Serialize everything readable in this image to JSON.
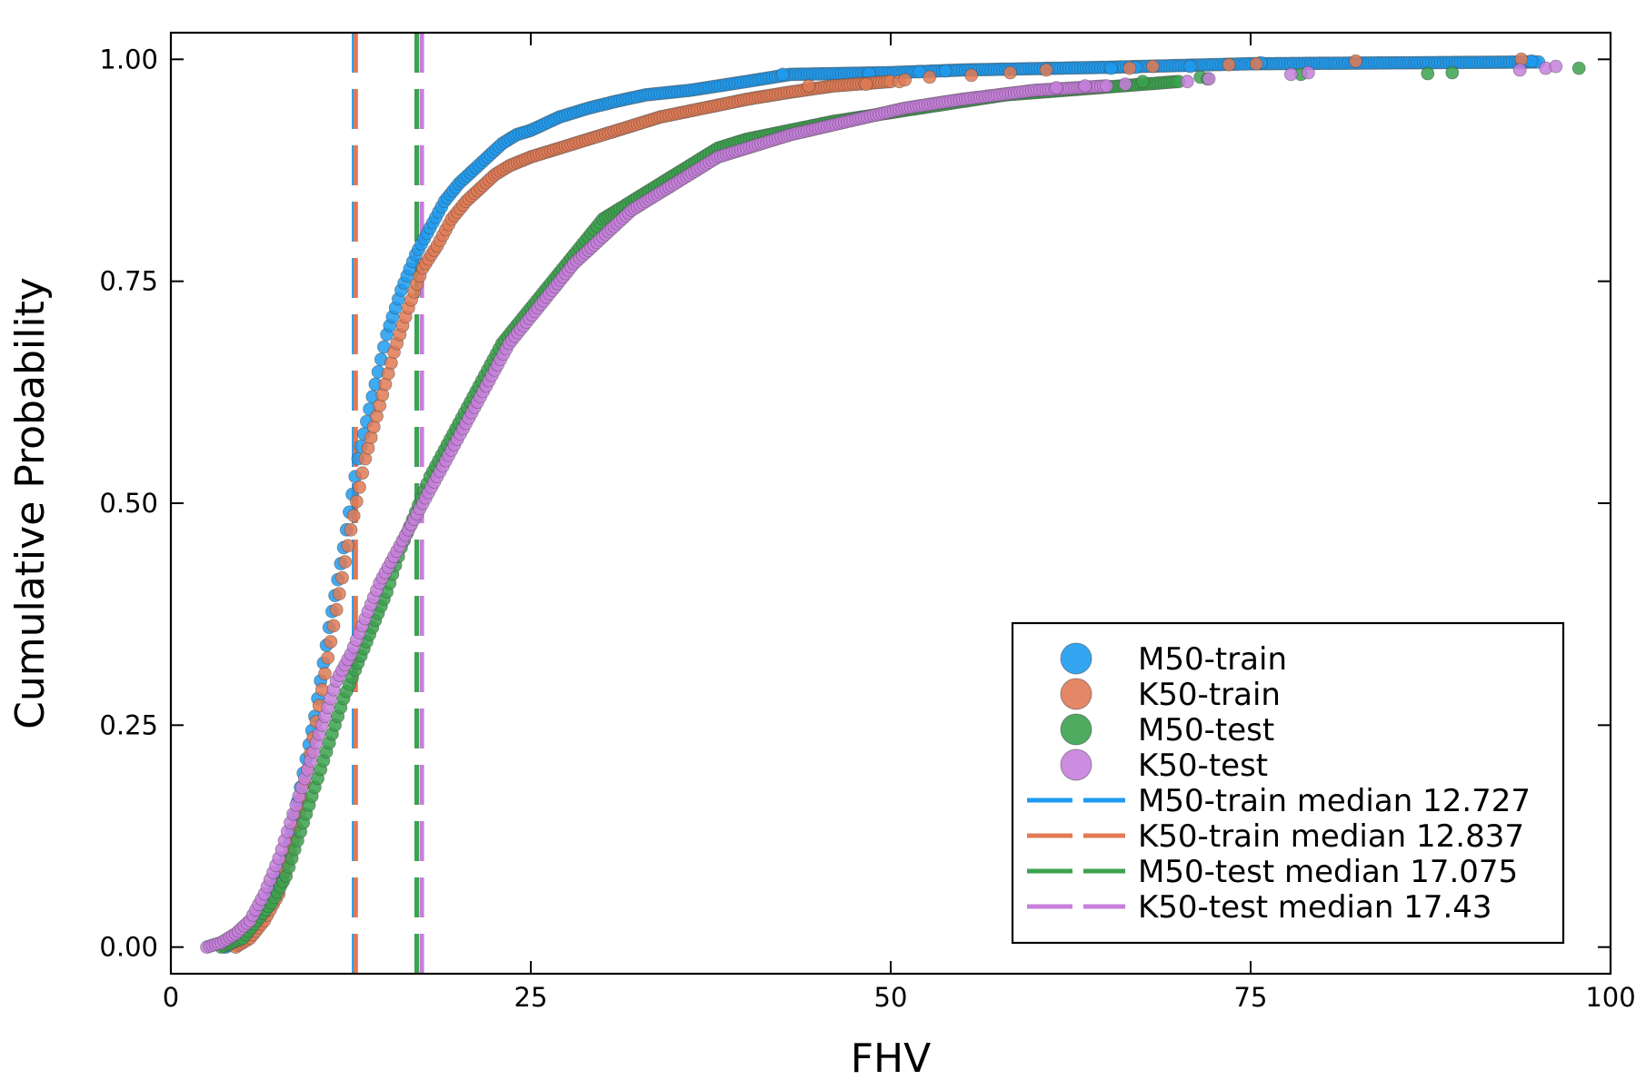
{
  "chart_data": {
    "type": "scatter",
    "title": "",
    "xlabel": "FHV",
    "ylabel": "Cumulative Probability",
    "xlim": [
      0,
      100
    ],
    "ylim": [
      -0.03,
      1.03
    ],
    "x_ticks": [
      0,
      25,
      50,
      75,
      100
    ],
    "x_tick_labels": [
      "0",
      "25",
      "50",
      "75",
      "100"
    ],
    "y_ticks": [
      0,
      0.25,
      0.5,
      0.75,
      1.0
    ],
    "y_tick_labels": [
      "0.00",
      "0.25",
      "0.50",
      "0.75",
      "1.00"
    ],
    "grid": false,
    "legend_position": "bottom-right",
    "series": [
      {
        "name": "M50-train",
        "color": "#1e9bf0",
        "curve": [
          [
            3.8,
            0
          ],
          [
            5,
            0.01
          ],
          [
            6,
            0.03
          ],
          [
            7,
            0.06
          ],
          [
            8,
            0.1
          ],
          [
            9,
            0.18
          ],
          [
            10,
            0.26
          ],
          [
            11,
            0.36
          ],
          [
            12,
            0.45
          ],
          [
            13,
            0.55
          ],
          [
            14,
            0.62
          ],
          [
            15,
            0.69
          ],
          [
            16,
            0.74
          ],
          [
            17,
            0.78
          ],
          [
            18,
            0.81
          ],
          [
            19,
            0.84
          ],
          [
            20,
            0.86
          ],
          [
            21,
            0.875
          ],
          [
            22,
            0.89
          ],
          [
            23,
            0.905
          ],
          [
            24,
            0.915
          ],
          [
            25,
            0.92
          ],
          [
            27,
            0.935
          ],
          [
            29,
            0.945
          ],
          [
            31,
            0.953
          ],
          [
            33,
            0.96
          ],
          [
            36,
            0.965
          ],
          [
            40,
            0.975
          ],
          [
            43,
            0.983
          ],
          [
            50,
            0.985
          ],
          [
            55,
            0.988
          ],
          [
            65,
            0.991
          ],
          [
            75,
            0.995
          ],
          [
            95,
            0.997
          ]
        ],
        "outliers": [
          [
            42.5,
            0.983
          ],
          [
            48.5,
            0.984
          ],
          [
            52,
            0.986
          ],
          [
            53.8,
            0.987
          ],
          [
            65.3,
            0.99
          ],
          [
            67,
            0.991
          ],
          [
            70.8,
            0.992
          ],
          [
            75.7,
            0.996
          ],
          [
            93.9,
            0.997
          ],
          [
            94.5,
            0.998
          ]
        ]
      },
      {
        "name": "K50-train",
        "color": "#e07a55",
        "curve": [
          [
            4.5,
            0
          ],
          [
            5.5,
            0.01
          ],
          [
            6.5,
            0.03
          ],
          [
            7.5,
            0.06
          ],
          [
            8.5,
            0.12
          ],
          [
            9.5,
            0.2
          ],
          [
            10.5,
            0.29
          ],
          [
            11.5,
            0.38
          ],
          [
            12.5,
            0.47
          ],
          [
            13.5,
            0.55
          ],
          [
            14.5,
            0.61
          ],
          [
            15.5,
            0.67
          ],
          [
            16.5,
            0.72
          ],
          [
            17.5,
            0.765
          ],
          [
            18.5,
            0.79
          ],
          [
            19.5,
            0.82
          ],
          [
            20.5,
            0.84
          ],
          [
            21.5,
            0.855
          ],
          [
            22.5,
            0.87
          ],
          [
            23.5,
            0.88
          ],
          [
            25,
            0.89
          ],
          [
            27,
            0.9
          ],
          [
            29,
            0.91
          ],
          [
            31,
            0.92
          ],
          [
            34,
            0.935
          ],
          [
            37,
            0.945
          ],
          [
            40,
            0.955
          ],
          [
            43,
            0.963
          ],
          [
            46,
            0.97
          ],
          [
            50,
            0.975
          ]
        ],
        "outliers": [
          [
            44.3,
            0.97
          ],
          [
            48.3,
            0.972
          ],
          [
            50.6,
            0.975
          ],
          [
            51,
            0.977
          ],
          [
            52.7,
            0.98
          ],
          [
            55.6,
            0.982
          ],
          [
            58.3,
            0.985
          ],
          [
            60.8,
            0.988
          ],
          [
            66.6,
            0.99
          ],
          [
            68.2,
            0.992
          ],
          [
            73.5,
            0.994
          ],
          [
            75.4,
            0.995
          ],
          [
            82.3,
            0.998
          ],
          [
            93.8,
            1.0
          ]
        ]
      },
      {
        "name": "M50-test",
        "color": "#3ba24e",
        "curve": [
          [
            3.5,
            0
          ],
          [
            5,
            0.01
          ],
          [
            6,
            0.03
          ],
          [
            7,
            0.05
          ],
          [
            8,
            0.08
          ],
          [
            9,
            0.13
          ],
          [
            10,
            0.18
          ],
          [
            11,
            0.23
          ],
          [
            12,
            0.28
          ],
          [
            13,
            0.32
          ],
          [
            14,
            0.36
          ],
          [
            15,
            0.4
          ],
          [
            16,
            0.45
          ],
          [
            17,
            0.49
          ],
          [
            18,
            0.53
          ],
          [
            19,
            0.56
          ],
          [
            20,
            0.59
          ],
          [
            21,
            0.62
          ],
          [
            22,
            0.65
          ],
          [
            23,
            0.68
          ],
          [
            24,
            0.7
          ],
          [
            25,
            0.72
          ],
          [
            26,
            0.74
          ],
          [
            27,
            0.76
          ],
          [
            28,
            0.78
          ],
          [
            29,
            0.8
          ],
          [
            30,
            0.82
          ],
          [
            32,
            0.84
          ],
          [
            34,
            0.86
          ],
          [
            36,
            0.88
          ],
          [
            38,
            0.9
          ],
          [
            40,
            0.91
          ],
          [
            43,
            0.92
          ],
          [
            46,
            0.93
          ],
          [
            50,
            0.94
          ],
          [
            54,
            0.95
          ],
          [
            58,
            0.96
          ],
          [
            62,
            0.965
          ],
          [
            66,
            0.97
          ],
          [
            70,
            0.975
          ]
        ],
        "outliers": [
          [
            67.5,
            0.975
          ],
          [
            71.5,
            0.98
          ],
          [
            72,
            0.978
          ],
          [
            78.5,
            0.983
          ],
          [
            87.3,
            0.984
          ],
          [
            89,
            0.985
          ],
          [
            97.8,
            0.99
          ]
        ]
      },
      {
        "name": "K50-test",
        "color": "#c77fdc",
        "curve": [
          [
            2.5,
            0
          ],
          [
            3.5,
            0.005
          ],
          [
            4.5,
            0.015
          ],
          [
            5.5,
            0.03
          ],
          [
            6.5,
            0.06
          ],
          [
            7.5,
            0.1
          ],
          [
            8.5,
            0.15
          ],
          [
            9.5,
            0.2
          ],
          [
            10.5,
            0.25
          ],
          [
            11.5,
            0.3
          ],
          [
            12.5,
            0.33
          ],
          [
            13.5,
            0.37
          ],
          [
            14.5,
            0.41
          ],
          [
            15.5,
            0.44
          ],
          [
            16.5,
            0.47
          ],
          [
            17.5,
            0.5
          ],
          [
            18.5,
            0.53
          ],
          [
            19.5,
            0.56
          ],
          [
            20.5,
            0.59
          ],
          [
            21.5,
            0.62
          ],
          [
            22.5,
            0.65
          ],
          [
            23.5,
            0.68
          ],
          [
            24.5,
            0.7
          ],
          [
            25.5,
            0.72
          ],
          [
            26.5,
            0.74
          ],
          [
            28,
            0.77
          ],
          [
            30,
            0.8
          ],
          [
            32,
            0.83
          ],
          [
            34,
            0.85
          ],
          [
            36,
            0.87
          ],
          [
            38,
            0.89
          ],
          [
            40,
            0.9
          ],
          [
            43,
            0.915
          ],
          [
            47,
            0.93
          ],
          [
            51,
            0.945
          ],
          [
            55,
            0.955
          ],
          [
            60,
            0.965
          ],
          [
            65,
            0.97
          ]
        ],
        "outliers": [
          [
            61.5,
            0.968
          ],
          [
            63.5,
            0.97
          ],
          [
            66.3,
            0.972
          ],
          [
            70.6,
            0.975
          ],
          [
            72.1,
            0.978
          ],
          [
            77.8,
            0.983
          ],
          [
            79,
            0.985
          ],
          [
            93.7,
            0.988
          ],
          [
            95.5,
            0.99
          ],
          [
            96.2,
            0.992
          ]
        ]
      }
    ],
    "medians": [
      {
        "name": "M50-train median 12.727",
        "value": 12.727,
        "color": "#1e9bf0"
      },
      {
        "name": "K50-train median 12.837",
        "value": 12.837,
        "color": "#e07a55"
      },
      {
        "name": "M50-test median 17.075",
        "value": 17.075,
        "color": "#3ba24e"
      },
      {
        "name": "K50-test median 17.43",
        "value": 17.43,
        "color": "#c77fdc"
      }
    ]
  }
}
